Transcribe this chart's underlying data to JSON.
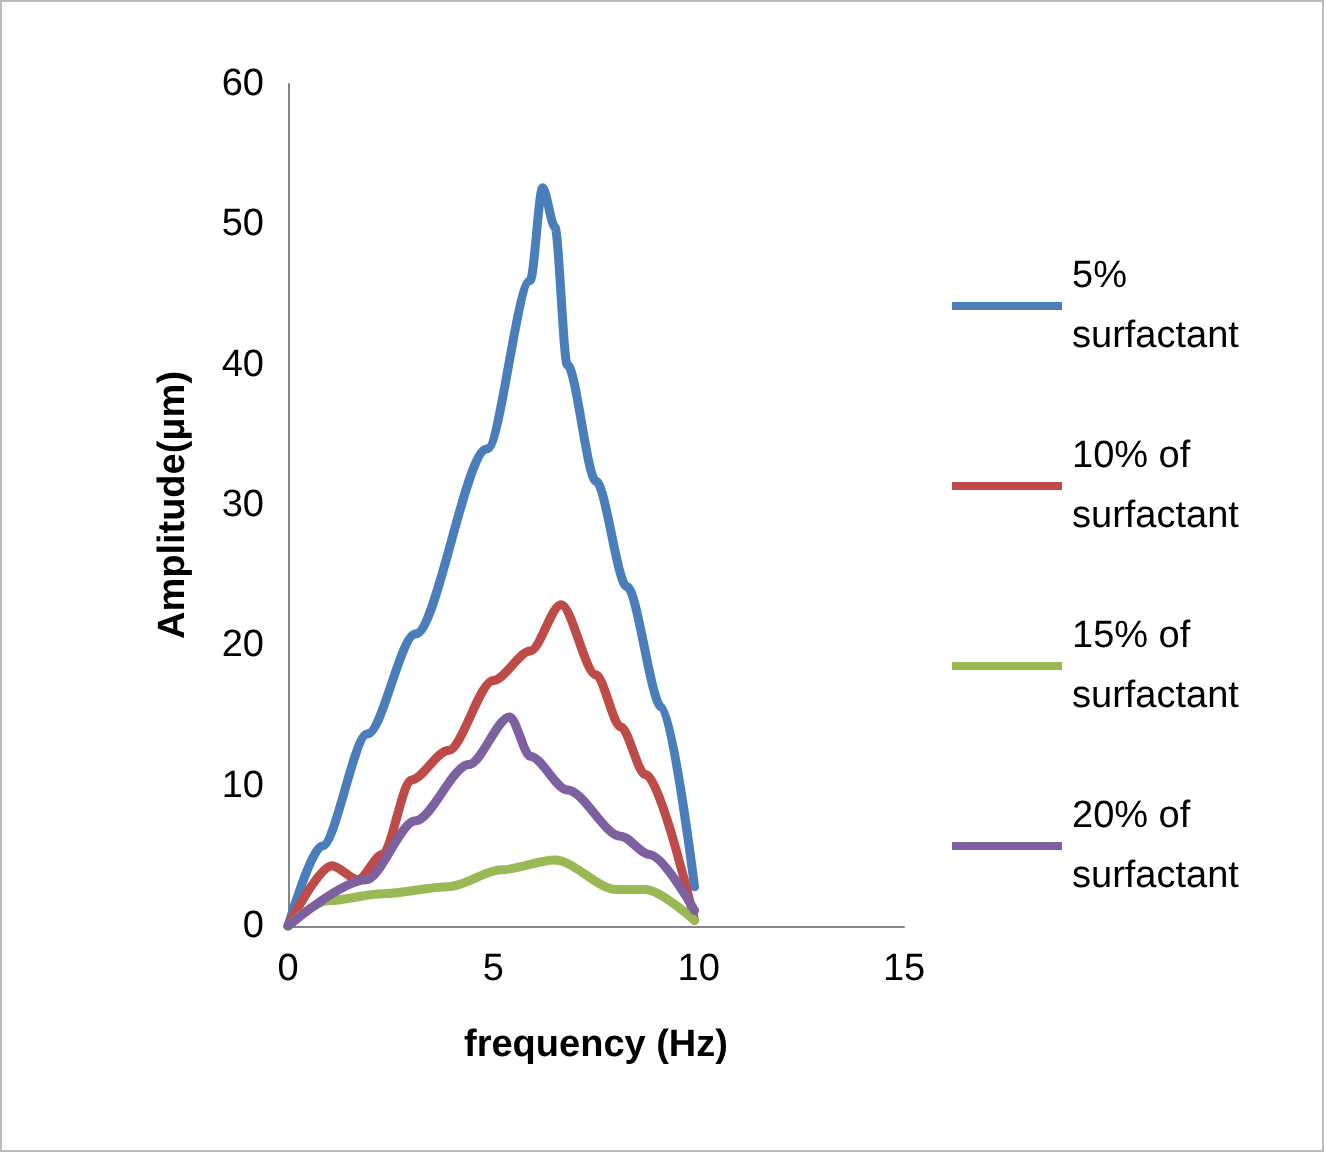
{
  "chart_data": {
    "type": "line",
    "xlabel": "frequency (Hz)",
    "ylabel": "Amplitude(μm)",
    "xlim": [
      0,
      15
    ],
    "xticks": [
      0,
      5,
      10,
      15
    ],
    "ylim": [
      0,
      60
    ],
    "yticks": [
      0,
      10,
      20,
      30,
      40,
      50,
      60
    ],
    "grid": false,
    "legend": "right",
    "marker": "none",
    "line_style": "solid",
    "series": [
      {
        "name": "5% surfactant",
        "color": "#4a7ebb",
        "x": [
          0,
          0.83,
          1.94,
          3.1,
          4.85,
          5.9,
          6.2,
          6.5,
          6.8,
          7.5,
          8.25,
          9.1,
          9.9
        ],
        "values": [
          0,
          5.7,
          13.7,
          20.8,
          34,
          46,
          52.6,
          49.8,
          40,
          31.7,
          24.2,
          15.6,
          2.8
        ]
      },
      {
        "name": "10% of surfactant",
        "color": "#be4b48",
        "x": [
          0,
          1.07,
          1.7,
          2.3,
          3.0,
          3.9,
          5.0,
          5.9,
          6.65,
          7.5,
          8.1,
          8.7,
          9.9
        ],
        "values": [
          0,
          4.3,
          3.3,
          5.1,
          10.4,
          12.5,
          17.5,
          19.6,
          22.9,
          17.9,
          14.2,
          10.8,
          0.4
        ]
      },
      {
        "name": "15% of surfactant",
        "color": "#98b954",
        "x": [
          0,
          0.97,
          2.3,
          3.9,
          5.2,
          6.5,
          8.0,
          8.7,
          9.9
        ],
        "values": [
          0,
          1.8,
          2.3,
          2.8,
          4.0,
          4.7,
          2.6,
          2.6,
          0.4
        ]
      },
      {
        "name": "20% of surfactant",
        "color": "#7d60a0",
        "x": [
          0,
          1.9,
          3.1,
          4.4,
          5.4,
          5.9,
          6.8,
          8.1,
          8.8,
          9.9
        ],
        "values": [
          0,
          3.3,
          7.5,
          11.5,
          14.9,
          12.1,
          9.7,
          6.4,
          5.1,
          1.1
        ]
      }
    ]
  }
}
